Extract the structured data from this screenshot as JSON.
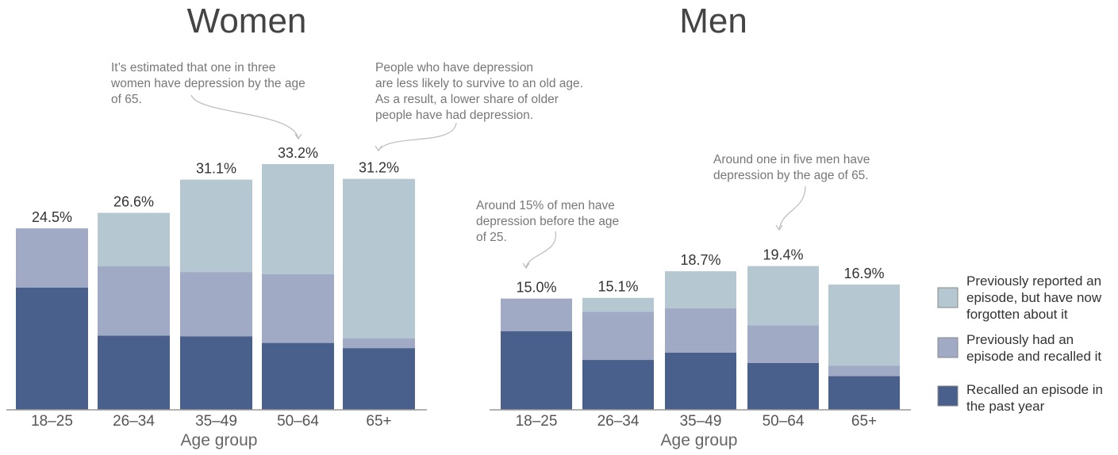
{
  "colors": {
    "past_year": "#4a608c",
    "recalled": "#a1aac5",
    "forgotten": "#b5c7d1"
  },
  "legend": [
    {
      "key": "forgotten",
      "lines": [
        "Previously reported an",
        "episode, but have now",
        "forgotten about it"
      ]
    },
    {
      "key": "recalled",
      "lines": [
        "Previously had an",
        "episode and recalled it"
      ]
    },
    {
      "key": "past_year",
      "lines": [
        "Recalled an episode in",
        "the past year"
      ]
    }
  ],
  "chart_data": [
    {
      "type": "bar",
      "stacked": true,
      "title": "Women",
      "xlabel": "Age group",
      "categories": [
        "18–25",
        "26–34",
        "35–49",
        "50–64",
        "65+"
      ],
      "totals": [
        "24.5%",
        "26.6%",
        "31.1%",
        "33.2%",
        "31.2%"
      ],
      "ylim": [
        0,
        33.2
      ],
      "series": [
        {
          "key": "past_year",
          "values": [
            16.5,
            10.0,
            9.9,
            9.0,
            8.3
          ]
        },
        {
          "key": "recalled",
          "values": [
            8.0,
            9.4,
            8.7,
            9.3,
            1.3
          ]
        },
        {
          "key": "forgotten",
          "values": [
            0.0,
            7.2,
            12.5,
            14.9,
            21.6
          ]
        }
      ],
      "annotations": [
        {
          "lines": [
            "It’s estimated that one in three",
            "women have depression by the age",
            "of 65."
          ],
          "target": "50–64"
        },
        {
          "lines": [
            "People who have depression",
            "are less likely to survive to an old age.",
            "As a result, a lower share of older",
            "people have had depression."
          ],
          "target": "65+"
        }
      ]
    },
    {
      "type": "bar",
      "stacked": true,
      "title": "Men",
      "xlabel": "Age group",
      "categories": [
        "18–25",
        "26–34",
        "35–49",
        "50–64",
        "65+"
      ],
      "totals": [
        "15.0%",
        "15.1%",
        "18.7%",
        "19.4%",
        "16.9%"
      ],
      "ylim": [
        0,
        33.2
      ],
      "series": [
        {
          "key": "past_year",
          "values": [
            10.6,
            6.7,
            7.7,
            6.3,
            4.5
          ]
        },
        {
          "key": "recalled",
          "values": [
            4.4,
            6.5,
            6.0,
            5.1,
            1.4
          ]
        },
        {
          "key": "forgotten",
          "values": [
            0.0,
            1.9,
            5.0,
            8.0,
            11.0
          ]
        }
      ],
      "annotations": [
        {
          "lines": [
            "Around 15% of men have",
            "depression before the age",
            "of 25."
          ],
          "target": "18–25"
        },
        {
          "lines": [
            "Around one in five men have",
            "depression by the age of 65."
          ],
          "target": "50–64"
        }
      ]
    }
  ]
}
